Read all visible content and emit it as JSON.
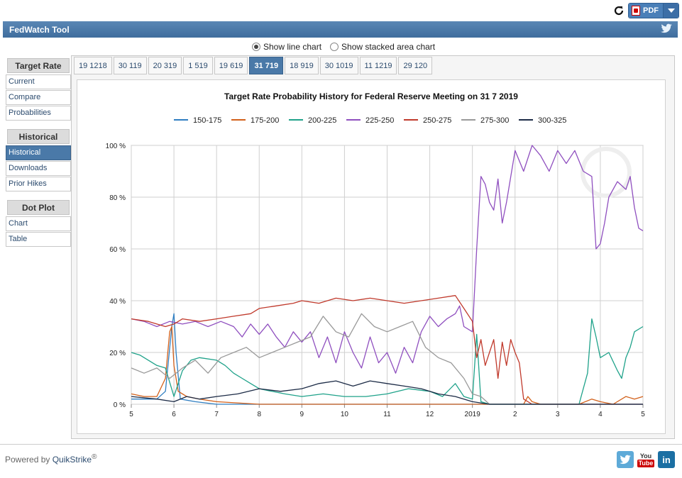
{
  "header": {
    "title": "FedWatch Tool",
    "pdf_label": "PDF"
  },
  "view_toggle": {
    "line": "Show line chart",
    "area": "Show stacked area chart",
    "selected": "line"
  },
  "sidebar": {
    "groups": [
      {
        "title": "Target Rate",
        "items": [
          "Current",
          "Compare",
          "Probabilities"
        ]
      },
      {
        "title": "Historical",
        "items": [
          "Historical",
          "Downloads",
          "Prior Hikes"
        ],
        "active": "Historical"
      },
      {
        "title": "Dot Plot",
        "items": [
          "Chart",
          "Table"
        ]
      }
    ]
  },
  "tabs": [
    "19 1218",
    "30 119",
    "20 319",
    "1 519",
    "19 619",
    "31 719",
    "18 919",
    "30 1019",
    "11 1219",
    "29 120"
  ],
  "active_tab": "31 719",
  "footer": {
    "powered_prefix": "Powered by ",
    "brand": "QuikStrike",
    "reg": "®"
  },
  "social": {
    "twitter": "twitter-icon",
    "youtube_top": "You",
    "youtube_bottom": "Tube",
    "linkedin": "in"
  },
  "chart_data": {
    "type": "line",
    "title": "Target Rate Probability History for Federal Reserve Meeting on 31 7 2019",
    "xlabel": "",
    "ylabel": "",
    "x_ticks": [
      "5",
      "6",
      "7",
      "8",
      "9",
      "10",
      "11",
      "12",
      "2019",
      "2",
      "3",
      "4",
      "5"
    ],
    "y_ticks": [
      "0 %",
      "20 %",
      "40 %",
      "60 %",
      "80 %",
      "100 %"
    ],
    "ylim": [
      0,
      100
    ],
    "x_range": [
      0,
      12
    ],
    "grid": true,
    "legend_position": "top",
    "series": [
      {
        "name": "150-175",
        "color": "#2f7ec1",
        "points": [
          [
            0,
            2
          ],
          [
            0.6,
            2
          ],
          [
            0.8,
            5
          ],
          [
            0.95,
            30
          ],
          [
            1.0,
            35
          ],
          [
            1.05,
            20
          ],
          [
            1.15,
            2
          ],
          [
            1.5,
            1
          ],
          [
            2,
            0
          ],
          [
            12,
            0
          ]
        ]
      },
      {
        "name": "175-200",
        "color": "#d2601a",
        "points": [
          [
            0,
            4
          ],
          [
            0.3,
            3
          ],
          [
            0.6,
            3
          ],
          [
            0.8,
            10
          ],
          [
            0.9,
            28
          ],
          [
            0.95,
            30
          ],
          [
            1.0,
            15
          ],
          [
            1.1,
            5
          ],
          [
            1.3,
            3
          ],
          [
            1.6,
            2
          ],
          [
            2,
            1
          ],
          [
            3,
            0
          ],
          [
            4,
            0
          ],
          [
            9.2,
            0
          ],
          [
            9.3,
            3
          ],
          [
            9.4,
            1
          ],
          [
            9.6,
            0
          ],
          [
            10.5,
            0
          ],
          [
            10.8,
            2
          ],
          [
            11.0,
            1
          ],
          [
            11.3,
            0
          ],
          [
            11.6,
            3
          ],
          [
            11.8,
            2
          ],
          [
            12,
            3
          ]
        ]
      },
      {
        "name": "200-225",
        "color": "#1fa28a",
        "points": [
          [
            0,
            20
          ],
          [
            0.2,
            19
          ],
          [
            0.4,
            17
          ],
          [
            0.6,
            15
          ],
          [
            0.8,
            14
          ],
          [
            1.0,
            3
          ],
          [
            1.2,
            13
          ],
          [
            1.4,
            17
          ],
          [
            1.6,
            18
          ],
          [
            2.0,
            17
          ],
          [
            2.2,
            15
          ],
          [
            2.4,
            12
          ],
          [
            2.6,
            10
          ],
          [
            2.8,
            8
          ],
          [
            3.0,
            6
          ],
          [
            3.3,
            5
          ],
          [
            3.6,
            4
          ],
          [
            4,
            3
          ],
          [
            4.5,
            4
          ],
          [
            5,
            3
          ],
          [
            5.5,
            3
          ],
          [
            6,
            4
          ],
          [
            6.5,
            6
          ],
          [
            7,
            5
          ],
          [
            7.3,
            3
          ],
          [
            7.6,
            8
          ],
          [
            7.8,
            3
          ],
          [
            8.0,
            2
          ],
          [
            8.1,
            27
          ],
          [
            8.2,
            1
          ],
          [
            8.4,
            0
          ],
          [
            9,
            0
          ],
          [
            10,
            0
          ],
          [
            10.5,
            0
          ],
          [
            10.7,
            12
          ],
          [
            10.8,
            33
          ],
          [
            10.9,
            26
          ],
          [
            11.0,
            18
          ],
          [
            11.2,
            20
          ],
          [
            11.4,
            13
          ],
          [
            11.5,
            10
          ],
          [
            11.6,
            18
          ],
          [
            11.7,
            22
          ],
          [
            11.8,
            28
          ],
          [
            12,
            30
          ]
        ]
      },
      {
        "name": "225-250",
        "color": "#8f4fbf",
        "points": [
          [
            0,
            33
          ],
          [
            0.3,
            32
          ],
          [
            0.6,
            30
          ],
          [
            0.9,
            32
          ],
          [
            1.2,
            31
          ],
          [
            1.5,
            32
          ],
          [
            1.8,
            30
          ],
          [
            2.1,
            32
          ],
          [
            2.4,
            30
          ],
          [
            2.6,
            26
          ],
          [
            2.8,
            31
          ],
          [
            3.0,
            27
          ],
          [
            3.2,
            31
          ],
          [
            3.4,
            26
          ],
          [
            3.6,
            22
          ],
          [
            3.8,
            28
          ],
          [
            4.0,
            24
          ],
          [
            4.2,
            28
          ],
          [
            4.4,
            18
          ],
          [
            4.6,
            26
          ],
          [
            4.8,
            16
          ],
          [
            5.0,
            28
          ],
          [
            5.2,
            20
          ],
          [
            5.4,
            14
          ],
          [
            5.6,
            26
          ],
          [
            5.8,
            16
          ],
          [
            6.0,
            20
          ],
          [
            6.2,
            12
          ],
          [
            6.4,
            22
          ],
          [
            6.6,
            16
          ],
          [
            6.8,
            28
          ],
          [
            7.0,
            34
          ],
          [
            7.2,
            30
          ],
          [
            7.4,
            33
          ],
          [
            7.6,
            35
          ],
          [
            7.7,
            38
          ],
          [
            7.8,
            30
          ],
          [
            8.0,
            28
          ],
          [
            8.1,
            60
          ],
          [
            8.2,
            88
          ],
          [
            8.3,
            85
          ],
          [
            8.4,
            78
          ],
          [
            8.5,
            75
          ],
          [
            8.6,
            87
          ],
          [
            8.7,
            70
          ],
          [
            8.8,
            78
          ],
          [
            9.0,
            98
          ],
          [
            9.2,
            90
          ],
          [
            9.4,
            100
          ],
          [
            9.6,
            96
          ],
          [
            9.8,
            90
          ],
          [
            10.0,
            98
          ],
          [
            10.2,
            93
          ],
          [
            10.4,
            98
          ],
          [
            10.6,
            90
          ],
          [
            10.8,
            88
          ],
          [
            10.9,
            60
          ],
          [
            11.0,
            62
          ],
          [
            11.1,
            70
          ],
          [
            11.2,
            80
          ],
          [
            11.4,
            86
          ],
          [
            11.6,
            83
          ],
          [
            11.7,
            88
          ],
          [
            11.8,
            76
          ],
          [
            11.9,
            68
          ],
          [
            12,
            67
          ]
        ]
      },
      {
        "name": "250-275",
        "color": "#c0392b",
        "points": [
          [
            0,
            33
          ],
          [
            0.4,
            32
          ],
          [
            0.8,
            30
          ],
          [
            1.0,
            31
          ],
          [
            1.2,
            33
          ],
          [
            1.6,
            32
          ],
          [
            2.0,
            33
          ],
          [
            2.4,
            34
          ],
          [
            2.8,
            35
          ],
          [
            3.0,
            37
          ],
          [
            3.4,
            38
          ],
          [
            3.8,
            39
          ],
          [
            4.0,
            40
          ],
          [
            4.4,
            39
          ],
          [
            4.8,
            41
          ],
          [
            5.2,
            40
          ],
          [
            5.6,
            41
          ],
          [
            6.0,
            40
          ],
          [
            6.4,
            39
          ],
          [
            6.8,
            40
          ],
          [
            7.2,
            41
          ],
          [
            7.6,
            42
          ],
          [
            7.8,
            37
          ],
          [
            8.0,
            32
          ],
          [
            8.1,
            18
          ],
          [
            8.2,
            25
          ],
          [
            8.3,
            15
          ],
          [
            8.4,
            20
          ],
          [
            8.5,
            25
          ],
          [
            8.6,
            10
          ],
          [
            8.7,
            24
          ],
          [
            8.8,
            15
          ],
          [
            8.9,
            25
          ],
          [
            9.0,
            20
          ],
          [
            9.1,
            16
          ],
          [
            9.2,
            2
          ],
          [
            9.4,
            0
          ],
          [
            12,
            0
          ]
        ]
      },
      {
        "name": "275-300",
        "color": "#999999",
        "points": [
          [
            0,
            14
          ],
          [
            0.3,
            12
          ],
          [
            0.6,
            14
          ],
          [
            0.9,
            10
          ],
          [
            1.2,
            14
          ],
          [
            1.5,
            17
          ],
          [
            1.8,
            12
          ],
          [
            2.1,
            18
          ],
          [
            2.4,
            20
          ],
          [
            2.7,
            22
          ],
          [
            3.0,
            18
          ],
          [
            3.3,
            20
          ],
          [
            3.6,
            22
          ],
          [
            3.9,
            24
          ],
          [
            4.2,
            26
          ],
          [
            4.5,
            34
          ],
          [
            4.8,
            28
          ],
          [
            5.1,
            26
          ],
          [
            5.4,
            35
          ],
          [
            5.7,
            30
          ],
          [
            6.0,
            28
          ],
          [
            6.3,
            30
          ],
          [
            6.6,
            32
          ],
          [
            6.9,
            22
          ],
          [
            7.2,
            18
          ],
          [
            7.5,
            16
          ],
          [
            7.8,
            10
          ],
          [
            8.0,
            4
          ],
          [
            8.2,
            3
          ],
          [
            8.4,
            0
          ],
          [
            9,
            0
          ],
          [
            12,
            0
          ]
        ]
      },
      {
        "name": "300-325",
        "color": "#1c2b46",
        "points": [
          [
            0,
            3
          ],
          [
            0.6,
            2
          ],
          [
            1.0,
            1
          ],
          [
            1.3,
            3
          ],
          [
            1.6,
            2
          ],
          [
            2.0,
            3
          ],
          [
            2.5,
            4
          ],
          [
            3.0,
            6
          ],
          [
            3.5,
            5
          ],
          [
            4.0,
            6
          ],
          [
            4.4,
            8
          ],
          [
            4.8,
            9
          ],
          [
            5.2,
            7
          ],
          [
            5.6,
            9
          ],
          [
            6.0,
            8
          ],
          [
            6.4,
            7
          ],
          [
            6.8,
            6
          ],
          [
            7.2,
            4
          ],
          [
            7.6,
            3
          ],
          [
            8.0,
            1
          ],
          [
            8.4,
            0
          ],
          [
            12,
            0
          ]
        ]
      }
    ]
  }
}
